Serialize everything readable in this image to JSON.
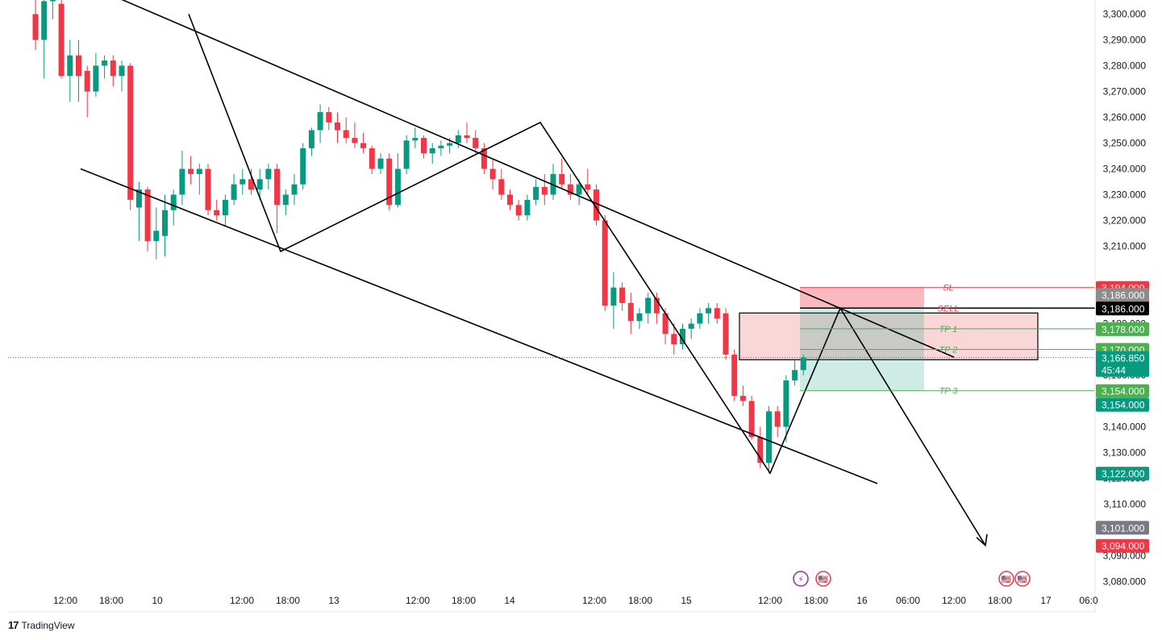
{
  "app": {
    "brand": "TradingView",
    "brand_mark": "17"
  },
  "chart_data": {
    "type": "candlestick",
    "y_axis": {
      "ticks": [
        "3,300.000",
        "3,290.000",
        "3,280.000",
        "3,270.000",
        "3,260.000",
        "3,250.000",
        "3,240.000",
        "3,230.000",
        "3,220.000",
        "3,210.000",
        "3,180.000",
        "3,160.000",
        "3,140.000",
        "3,130.000",
        "3,120.000",
        "3,110.000",
        "3,090.000",
        "3,080.000"
      ],
      "range": [
        3076,
        3305
      ]
    },
    "x_axis": {
      "ticks": [
        "12:00",
        "18:00",
        "10",
        "12:00",
        "18:00",
        "13",
        "12:00",
        "18:00",
        "14",
        "12:00",
        "18:00",
        "15",
        "12:00",
        "18:00",
        "16",
        "06:00",
        "12:00",
        "18:00",
        "17",
        "06:0"
      ]
    },
    "last_price": 3166.85,
    "countdown": "45:44",
    "price_badges": [
      {
        "text": "3,194.000",
        "price": 3194.0,
        "color": "#f23645",
        "text_color": "#ffffff"
      },
      {
        "text": "3,194.000",
        "price": 3194.0,
        "color": "#f23645",
        "text_color": "#ffffff",
        "stack": 1
      },
      {
        "text": "3,186.000",
        "price": 3186.0,
        "color": "#8c8c8c",
        "text_color": "#ffffff",
        "stack": -1
      },
      {
        "text": "3,186.000",
        "price": 3186.0,
        "color": "#000000",
        "text_color": "#ffffff"
      },
      {
        "text": "3,178.000",
        "price": 3178.0,
        "color": "#4caf50",
        "text_color": "#ffffff"
      },
      {
        "text": "3,170.000",
        "price": 3170.0,
        "color": "#4caf50",
        "text_color": "#ffffff"
      },
      {
        "text": "3,166.850",
        "price": 3166.85,
        "color": "#089981",
        "text_color": "#ffffff",
        "sub": "45:44"
      },
      {
        "text": "3,154.000",
        "price": 3154.0,
        "color": "#4caf50",
        "text_color": "#ffffff"
      },
      {
        "text": "3,154.000",
        "price": 3154.0,
        "color": "#089981",
        "text_color": "#ffffff",
        "stack": 1
      },
      {
        "text": "3,122.000",
        "price": 3122.0,
        "color": "#089981",
        "text_color": "#ffffff"
      },
      {
        "text": "3,101.000",
        "price": 3101.0,
        "color": "#787b86",
        "text_color": "#ffffff"
      },
      {
        "text": "3,094.000",
        "price": 3094.0,
        "color": "#f23645",
        "text_color": "#ffffff"
      }
    ],
    "levels": [
      {
        "label": "SL",
        "price": 3194.0,
        "color": "#f23645"
      },
      {
        "label": "SELL",
        "price": 3186.0,
        "color": "#f23645",
        "line_color": "#000000"
      },
      {
        "label": "TP 1",
        "price": 3178.0,
        "color": "#4caf50"
      },
      {
        "label": "TP 2",
        "price": 3170.0,
        "color": "#4caf50"
      },
      {
        "label": "TP 3",
        "price": 3154.0,
        "color": "#4caf50"
      }
    ],
    "zone": {
      "high": 3186.0,
      "low": 3166.0,
      "color": "#f7c5c8"
    },
    "risk_reward": {
      "entry": 3186.0,
      "stop": 3194.0,
      "target": 3154.0
    },
    "candles": [
      [
        3300,
        3312,
        3286,
        3290
      ],
      [
        3290,
        3318,
        3275,
        3305
      ],
      [
        3305,
        3310,
        3298,
        3306
      ],
      [
        3304,
        3306,
        3275,
        3276
      ],
      [
        3276,
        3290,
        3266,
        3284
      ],
      [
        3284,
        3290,
        3266,
        3276
      ],
      [
        3278,
        3280,
        3260,
        3270
      ],
      [
        3270,
        3285,
        3268,
        3280
      ],
      [
        3280,
        3284,
        3275,
        3282
      ],
      [
        3282,
        3284,
        3272,
        3276
      ],
      [
        3276,
        3282,
        3270,
        3280
      ],
      [
        3280,
        3281,
        3224,
        3228
      ],
      [
        3225,
        3235,
        3212,
        3232
      ],
      [
        3232,
        3233,
        3208,
        3212
      ],
      [
        3212,
        3225,
        3205,
        3216
      ],
      [
        3214,
        3230,
        3206,
        3224
      ],
      [
        3224,
        3232,
        3218,
        3230
      ],
      [
        3230,
        3247,
        3226,
        3240
      ],
      [
        3240,
        3245,
        3234,
        3238
      ],
      [
        3238,
        3242,
        3230,
        3240
      ],
      [
        3240,
        3242,
        3222,
        3224
      ],
      [
        3224,
        3228,
        3220,
        3222
      ],
      [
        3222,
        3230,
        3218,
        3228
      ],
      [
        3228,
        3238,
        3226,
        3234
      ],
      [
        3234,
        3240,
        3230,
        3236
      ],
      [
        3236,
        3240,
        3230,
        3232
      ],
      [
        3232,
        3240,
        3228,
        3236
      ],
      [
        3236,
        3242,
        3232,
        3240
      ],
      [
        3240,
        3242,
        3215,
        3226
      ],
      [
        3226,
        3232,
        3222,
        3230
      ],
      [
        3230,
        3238,
        3226,
        3234
      ],
      [
        3234,
        3250,
        3232,
        3248
      ],
      [
        3248,
        3256,
        3245,
        3255
      ],
      [
        3255,
        3265,
        3250,
        3262
      ],
      [
        3262,
        3264,
        3255,
        3258
      ],
      [
        3258,
        3262,
        3250,
        3255
      ],
      [
        3255,
        3260,
        3250,
        3252
      ],
      [
        3252,
        3258,
        3248,
        3250
      ],
      [
        3250,
        3254,
        3246,
        3248
      ],
      [
        3248,
        3249,
        3238,
        3240
      ],
      [
        3240,
        3246,
        3238,
        3244
      ],
      [
        3244,
        3246,
        3224,
        3226
      ],
      [
        3226,
        3246,
        3225,
        3240
      ],
      [
        3240,
        3253,
        3238,
        3251
      ],
      [
        3251,
        3256,
        3248,
        3252
      ],
      [
        3252,
        3253,
        3244,
        3246
      ],
      [
        3246,
        3250,
        3242,
        3248
      ],
      [
        3248,
        3251,
        3245,
        3249
      ],
      [
        3249,
        3252,
        3246,
        3250
      ],
      [
        3250,
        3255,
        3248,
        3253
      ],
      [
        3253,
        3258,
        3250,
        3252
      ],
      [
        3252,
        3255,
        3246,
        3248
      ],
      [
        3248,
        3250,
        3238,
        3240
      ],
      [
        3240,
        3244,
        3232,
        3236
      ],
      [
        3236,
        3240,
        3228,
        3230
      ],
      [
        3230,
        3232,
        3224,
        3226
      ],
      [
        3226,
        3228,
        3220,
        3222
      ],
      [
        3222,
        3230,
        3220,
        3228
      ],
      [
        3228,
        3236,
        3226,
        3233
      ],
      [
        3233,
        3238,
        3226,
        3230
      ],
      [
        3230,
        3242,
        3228,
        3238
      ],
      [
        3238,
        3244,
        3232,
        3234
      ],
      [
        3234,
        3238,
        3228,
        3230
      ],
      [
        3230,
        3236,
        3226,
        3234
      ],
      [
        3234,
        3240,
        3230,
        3232
      ],
      [
        3232,
        3234,
        3218,
        3220
      ],
      [
        3220,
        3222,
        3185,
        3187
      ],
      [
        3187,
        3200,
        3178,
        3194
      ],
      [
        3194,
        3196,
        3185,
        3188
      ],
      [
        3188,
        3192,
        3176,
        3181
      ],
      [
        3181,
        3186,
        3178,
        3184
      ],
      [
        3184,
        3192,
        3180,
        3190
      ],
      [
        3190,
        3192,
        3180,
        3184
      ],
      [
        3184,
        3186,
        3172,
        3176
      ],
      [
        3176,
        3180,
        3168,
        3172
      ],
      [
        3172,
        3180,
        3170,
        3178
      ],
      [
        3178,
        3182,
        3174,
        3180
      ],
      [
        3180,
        3186,
        3178,
        3184
      ],
      [
        3184,
        3188,
        3180,
        3186
      ],
      [
        3186,
        3188,
        3180,
        3182
      ],
      [
        3184,
        3186,
        3166,
        3168
      ],
      [
        3168,
        3170,
        3150,
        3152
      ],
      [
        3152,
        3156,
        3148,
        3150
      ],
      [
        3150,
        3152,
        3135,
        3136
      ],
      [
        3136,
        3140,
        3124,
        3126
      ],
      [
        3126,
        3148,
        3122,
        3146
      ],
      [
        3146,
        3148,
        3136,
        3140
      ],
      [
        3140,
        3160,
        3134,
        3158
      ],
      [
        3158,
        3166,
        3156,
        3162
      ],
      [
        3162,
        3168,
        3160,
        3166.85
      ]
    ],
    "drawings": {
      "channel_upper": [
        [
          -700,
          3420
        ],
        [
          1183,
          3167
        ]
      ],
      "channel_lower": [
        [
          100,
          3240
        ],
        [
          1088,
          3118
        ]
      ],
      "path": [
        [
          234,
          3300
        ],
        [
          348,
          3208
        ],
        [
          670,
          3258
        ],
        [
          955,
          3122
        ],
        [
          1042,
          3186
        ],
        [
          1222,
          3094
        ]
      ]
    },
    "event_icons": [
      {
        "name": "flash-event-icon",
        "color": "#9c27b0",
        "glyph": "⚡"
      },
      {
        "name": "us-flag-event-icon",
        "color": "#f23645",
        "glyph": "🇺🇸"
      },
      {
        "name": "us-flag-event-icon",
        "color": "#f23645",
        "glyph": "🇺🇸"
      },
      {
        "name": "us-flag-event-icon",
        "color": "#f23645",
        "glyph": "🇺🇸"
      }
    ],
    "colors": {
      "up": "#089981",
      "down": "#f23645",
      "grid": "#f0f3fa",
      "line": "#000000"
    }
  }
}
